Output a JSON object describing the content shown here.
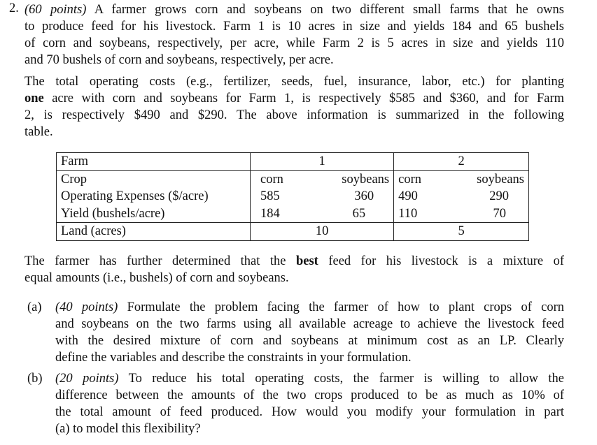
{
  "problem_number": "2.",
  "intro_lines": [
    "(60 points) A farmer grows corn and soybeans on two different small farms that he owns",
    "to produce feed for his livestock. Farm 1 is 10 acres in size and yields 184 and 65 bushels",
    "of corn and soybeans, respectively, per acre, while Farm 2 is 5 acres in size and yields 110",
    "and 70 bushels of corn and soybeans, respectively, per acre."
  ],
  "cost_lines": [
    "The total operating costs (e.g., fertilizer, seeds, fuel, insurance, labor, etc.) for planting",
    "one acre with corn and soybeans for Farm 1, is respectively $585 and $360, and for Farm",
    "2, is respectively $490 and $290. The above information is summarized in the following",
    "table."
  ],
  "table": {
    "farm_label": "Farm",
    "farm1": "1",
    "farm2": "2",
    "crop_label": "Crop",
    "corn": "corn",
    "soybeans": "soybeans",
    "rows": [
      {
        "label": "Operating Expenses ($/acre)",
        "values": [
          "585",
          "360",
          "490",
          "290"
        ]
      },
      {
        "label": "Yield (bushels/acre)",
        "values": [
          "184",
          "65",
          "110",
          "70"
        ]
      }
    ],
    "land_label": "Land (acres)",
    "land1": "10",
    "land2": "5"
  },
  "mix_lines": [
    "The farmer has further determined that the best feed for his livestock is a mixture of",
    "equal amounts (i.e., bushels) of corn and soybeans."
  ],
  "parts": [
    {
      "label": "(a)",
      "lines": [
        "(40 points) Formulate the problem facing the farmer of how to plant crops of corn",
        "and soybeans on the two farms using all available acreage to achieve the livestock feed",
        "with the desired mixture of corn and soybeans at minimum cost as an LP. Clearly",
        "define the variables and describe the constraints in your formulation."
      ]
    },
    {
      "label": "(b)",
      "lines": [
        "(20 points) To reduce his total operating costs, the farmer is willing to allow the",
        "difference between the amounts of the two crops produced to be as much as 10% of",
        "the total amount of feed produced. How would you modify your formulation in part",
        "(a) to model this flexibility?"
      ]
    }
  ]
}
